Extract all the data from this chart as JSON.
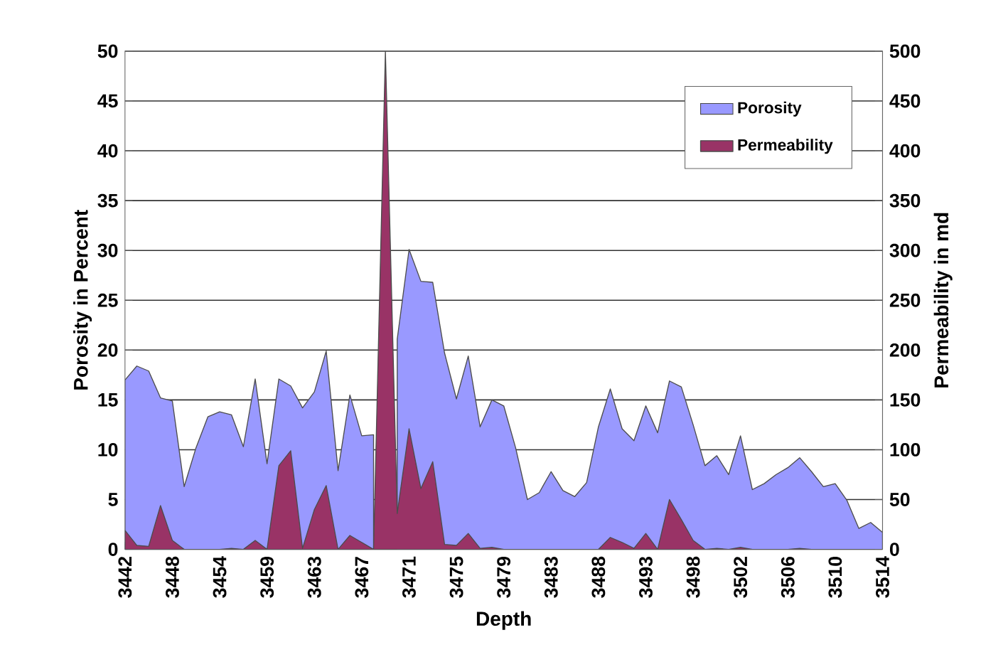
{
  "chart_data": {
    "type": "area",
    "xlabel": "Depth",
    "ylabel": "Porosity in Percent",
    "y2label": "Permeability in md",
    "categories": [
      "3442",
      null,
      null,
      null,
      "3448",
      null,
      null,
      null,
      "3454",
      null,
      null,
      null,
      "3459",
      null,
      null,
      null,
      "3463",
      null,
      null,
      null,
      "3467",
      null,
      null,
      null,
      "3471",
      null,
      null,
      null,
      "3475",
      null,
      null,
      null,
      "3479",
      null,
      null,
      null,
      "3483",
      null,
      null,
      null,
      "3488",
      null,
      null,
      null,
      "3493",
      null,
      null,
      null,
      "3498",
      null,
      null,
      null,
      "3502",
      null,
      null,
      null,
      "3506",
      null,
      null,
      null,
      "3510",
      null,
      null,
      null,
      "3514"
    ],
    "series": [
      {
        "name": "Porosity",
        "color": "#9999ff",
        "values": [
          17.0,
          18.4,
          17.9,
          15.2,
          14.9,
          6.3,
          10.2,
          13.3,
          13.8,
          13.5,
          10.3,
          17.1,
          8.6,
          17.1,
          16.4,
          14.2,
          15.8,
          19.9,
          7.9,
          15.5,
          11.4,
          11.5,
          null,
          21.1,
          30.1,
          26.9,
          26.8,
          19.7,
          15.1,
          19.4,
          12.3,
          15.0,
          14.4,
          10.2,
          5.0,
          5.7,
          7.8,
          5.9,
          5.3,
          6.7,
          12.3,
          16.1,
          12.1,
          10.9,
          14.4,
          11.7,
          16.9,
          16.3,
          12.5,
          8.4,
          9.4,
          7.5,
          11.4,
          6.0,
          6.6,
          7.5,
          8.2,
          9.2,
          7.8,
          6.3,
          6.6,
          4.9,
          2.1,
          2.7,
          1.7
        ]
      },
      {
        "name": "Permeability",
        "color": "#993366",
        "axis": "y2",
        "values": [
          19,
          4,
          3,
          44,
          9,
          0,
          0,
          0,
          0,
          1,
          0,
          9,
          0,
          84,
          99,
          1,
          40,
          64,
          0,
          14,
          7,
          0,
          500,
          36,
          121,
          61,
          88,
          5,
          4,
          16,
          1,
          2,
          0,
          0,
          0,
          0,
          0,
          0,
          0,
          0,
          0,
          12,
          7,
          1,
          16,
          0,
          50,
          30,
          9,
          0,
          1,
          0,
          2,
          0,
          0,
          0,
          0,
          1,
          0,
          0,
          0,
          0,
          0,
          0,
          0
        ]
      }
    ],
    "ylim": [
      0,
      50
    ],
    "yticks": [
      0,
      5,
      10,
      15,
      20,
      25,
      30,
      35,
      40,
      45,
      50
    ],
    "y2lim": [
      0,
      500
    ],
    "y2ticks": [
      0,
      50,
      100,
      150,
      200,
      250,
      300,
      350,
      400,
      450,
      500
    ],
    "grid": "y",
    "legend": "top right"
  }
}
